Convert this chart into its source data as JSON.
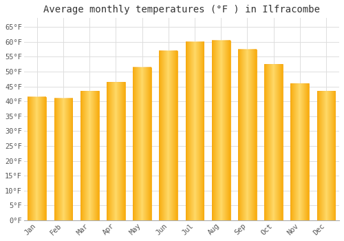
{
  "title": "Average monthly temperatures (°F ) in Ilfracombe",
  "months": [
    "Jan",
    "Feb",
    "Mar",
    "Apr",
    "May",
    "Jun",
    "Jul",
    "Aug",
    "Sep",
    "Oct",
    "Nov",
    "Dec"
  ],
  "values": [
    41.5,
    41.0,
    43.5,
    46.5,
    51.5,
    57.0,
    60.0,
    60.5,
    57.5,
    52.5,
    46.0,
    43.5
  ],
  "bar_color_main": "#FFC830",
  "bar_color_light": "#FFE080",
  "bar_color_dark": "#F5A000",
  "ylim": [
    0,
    68
  ],
  "yticks": [
    0,
    5,
    10,
    15,
    20,
    25,
    30,
    35,
    40,
    45,
    50,
    55,
    60,
    65
  ],
  "ytick_labels": [
    "0°F",
    "5°F",
    "10°F",
    "15°F",
    "20°F",
    "25°F",
    "30°F",
    "35°F",
    "40°F",
    "45°F",
    "50°F",
    "55°F",
    "60°F",
    "65°F"
  ],
  "background_color": "#FFFFFF",
  "plot_bg_color": "#FFFFFF",
  "grid_color": "#DDDDDD",
  "title_fontsize": 10,
  "tick_fontsize": 7.5,
  "font_family": "monospace",
  "bar_width": 0.7,
  "spine_color": "#AAAAAA"
}
